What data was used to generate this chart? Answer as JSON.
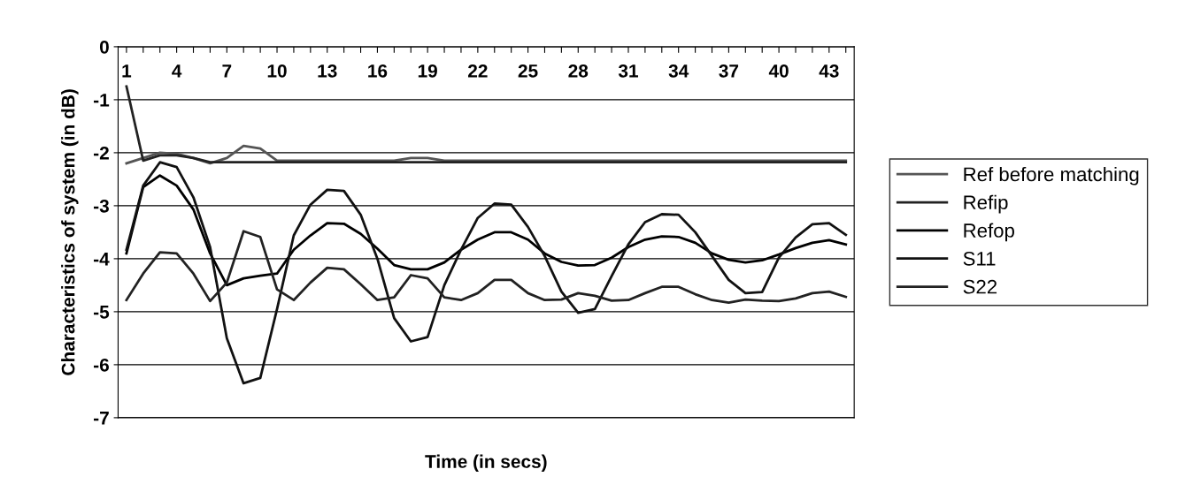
{
  "chart_data": {
    "type": "line",
    "xlabel": "Time (in secs)",
    "ylabel": "Characteristics of system (in dB)",
    "categories": [
      "1",
      null,
      null,
      "4",
      null,
      null,
      "7",
      null,
      null,
      "10",
      null,
      null,
      "13",
      null,
      null,
      "16",
      null,
      null,
      "19",
      null,
      null,
      "22",
      null,
      null,
      "25",
      null,
      null,
      "28",
      null,
      null,
      "31",
      null,
      null,
      "34",
      null,
      null,
      "37",
      null,
      null,
      "40",
      null,
      null,
      "43",
      null
    ],
    "ylim": [
      -7,
      0
    ],
    "yticks": [
      0,
      -1,
      -2,
      -3,
      -4,
      -5,
      -6,
      -7
    ],
    "grid": "y",
    "legend": "right",
    "marker": "none",
    "line_style": "solid",
    "series": [
      {
        "name": "Ref before matching",
        "color": "#555555",
        "values": [
          -2.2,
          -2.1,
          -2.0,
          -2.02,
          -2.1,
          -2.2,
          -2.1,
          -1.87,
          -1.92,
          -2.15,
          -2.15,
          -2.15,
          -2.15,
          -2.15,
          -2.15,
          -2.15,
          -2.15,
          -2.1,
          -2.1,
          -2.15,
          -2.15,
          -2.15,
          -2.15,
          -2.15,
          -2.15,
          -2.15,
          -2.15,
          -2.15,
          -2.15,
          -2.15,
          -2.15,
          -2.15,
          -2.15,
          -2.15,
          -2.15,
          -2.15,
          -2.15,
          -2.15,
          -2.15,
          -2.15,
          -2.15,
          -2.15,
          -2.15,
          -2.15
        ]
      },
      {
        "name": "Refip",
        "color": "#222222",
        "values": [
          -0.75,
          -2.15,
          -2.05,
          -2.05,
          -2.1,
          -2.18,
          -2.18,
          -2.18,
          -2.18,
          -2.18,
          -2.18,
          -2.18,
          -2.18,
          -2.18,
          -2.18,
          -2.18,
          -2.18,
          -2.18,
          -2.18,
          -2.18,
          -2.18,
          -2.18,
          -2.18,
          -2.18,
          -2.18,
          -2.18,
          -2.18,
          -2.18,
          -2.18,
          -2.18,
          -2.18,
          -2.18,
          -2.18,
          -2.18,
          -2.18,
          -2.18,
          -2.18,
          -2.18,
          -2.18,
          -2.18,
          -2.18,
          -2.18,
          -2.18,
          -2.18
        ]
      },
      {
        "name": "Refop",
        "color": "#000000",
        "values": [
          -3.9,
          -2.65,
          -2.43,
          -2.62,
          -3.07,
          -3.9,
          -4.5,
          -4.37,
          -4.32,
          -4.28,
          -3.83,
          -3.56,
          -3.33,
          -3.34,
          -3.53,
          -3.81,
          -4.12,
          -4.2,
          -4.2,
          -4.07,
          -3.83,
          -3.64,
          -3.5,
          -3.5,
          -3.64,
          -3.9,
          -4.06,
          -4.13,
          -4.12,
          -3.98,
          -3.78,
          -3.64,
          -3.58,
          -3.59,
          -3.7,
          -3.9,
          -4.02,
          -4.07,
          -4.03,
          -3.92,
          -3.8,
          -3.7,
          -3.65,
          -3.73
        ]
      },
      {
        "name": "S11",
        "color": "#111111",
        "values": [
          -3.83,
          -2.62,
          -2.18,
          -2.27,
          -2.84,
          -3.78,
          -5.5,
          -6.35,
          -6.25,
          -4.95,
          -3.56,
          -2.98,
          -2.7,
          -2.72,
          -3.17,
          -4.0,
          -5.12,
          -5.56,
          -5.48,
          -4.5,
          -3.83,
          -3.23,
          -2.96,
          -2.98,
          -3.4,
          -3.95,
          -4.62,
          -5.02,
          -4.95,
          -4.33,
          -3.73,
          -3.31,
          -3.16,
          -3.17,
          -3.5,
          -3.95,
          -4.4,
          -4.65,
          -4.63,
          -3.98,
          -3.6,
          -3.35,
          -3.33,
          -3.55
        ]
      },
      {
        "name": "S22",
        "color": "#222222",
        "values": [
          -4.78,
          -4.28,
          -3.88,
          -3.9,
          -4.28,
          -4.8,
          -4.45,
          -3.48,
          -3.59,
          -4.58,
          -4.78,
          -4.45,
          -4.17,
          -4.2,
          -4.48,
          -4.78,
          -4.73,
          -4.31,
          -4.37,
          -4.73,
          -4.78,
          -4.65,
          -4.4,
          -4.4,
          -4.65,
          -4.78,
          -4.77,
          -4.65,
          -4.7,
          -4.79,
          -4.78,
          -4.65,
          -4.53,
          -4.53,
          -4.67,
          -4.78,
          -4.83,
          -4.77,
          -4.79,
          -4.8,
          -4.75,
          -4.65,
          -4.62,
          -4.72
        ]
      }
    ]
  }
}
